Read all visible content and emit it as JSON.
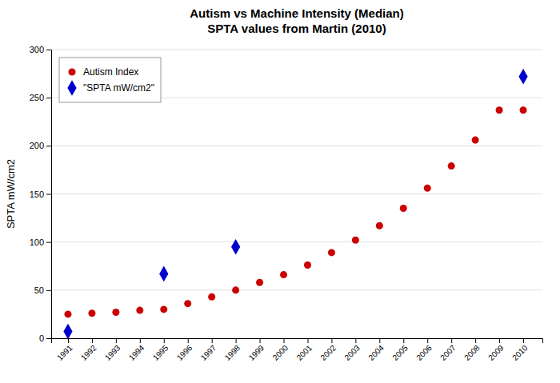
{
  "chart_data": {
    "type": "scatter",
    "title": "Autism vs Machine Intensity (Median)\nSPTA values from Martin (2010)",
    "y_label": "SPTA mW/cm2",
    "series": [
      {
        "name": "Autism Index",
        "color": "#CC0000",
        "marker": "circle",
        "x": [
          1991,
          1992,
          1993,
          1994,
          1995,
          1996,
          1997,
          1998,
          1999,
          2000,
          2001,
          2002,
          2003,
          2004,
          2005,
          2006,
          2007,
          2008,
          2009,
          2010
        ],
        "values": [
          25,
          26,
          27,
          29,
          30,
          36,
          43,
          50,
          58,
          66,
          76,
          89,
          102,
          117,
          135,
          156,
          179,
          206,
          237,
          237
        ]
      },
      {
        "name": "\"SPTA mW/cm2\"",
        "color": "#0000CC",
        "marker": "diamond",
        "x": [
          1991,
          1995,
          1998,
          2010
        ],
        "values": [
          7,
          67,
          95,
          272
        ]
      }
    ],
    "xlim": [
      1990.3,
      2010.8
    ],
    "xticks": [
      1991,
      1992,
      1993,
      1994,
      1995,
      1996,
      1997,
      1998,
      1999,
      2000,
      2001,
      2002,
      2003,
      2004,
      2005,
      2006,
      2007,
      2008,
      2009,
      2010
    ],
    "ylim": [
      0,
      300
    ],
    "yticks": [
      0,
      50,
      100,
      150,
      200,
      250,
      300
    ],
    "grid": true,
    "legend": "upper left"
  }
}
